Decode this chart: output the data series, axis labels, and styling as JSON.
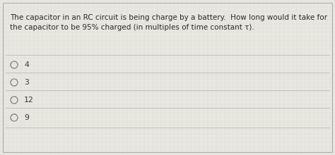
{
  "question_line1": "The capacitor in an RC circuit is being charge by a battery.  How long would it take for",
  "question_line2": "the capacitor to be 95% charged (in multiples of time constant τ).",
  "options": [
    "4",
    "3",
    "12",
    "9"
  ],
  "bg_color": "#e8e8e0",
  "text_color": "#2a2a2a",
  "option_text_color": "#3a3a3a",
  "circle_edge_color": "#777777",
  "border_color": "#aaaaaa",
  "separator_color": "#bbbbbb",
  "grid_color": "#d8d8d0",
  "question_fontsize": 7.5,
  "option_fontsize": 7.8,
  "fig_width": 4.74,
  "fig_height": 2.2,
  "dpi": 100
}
